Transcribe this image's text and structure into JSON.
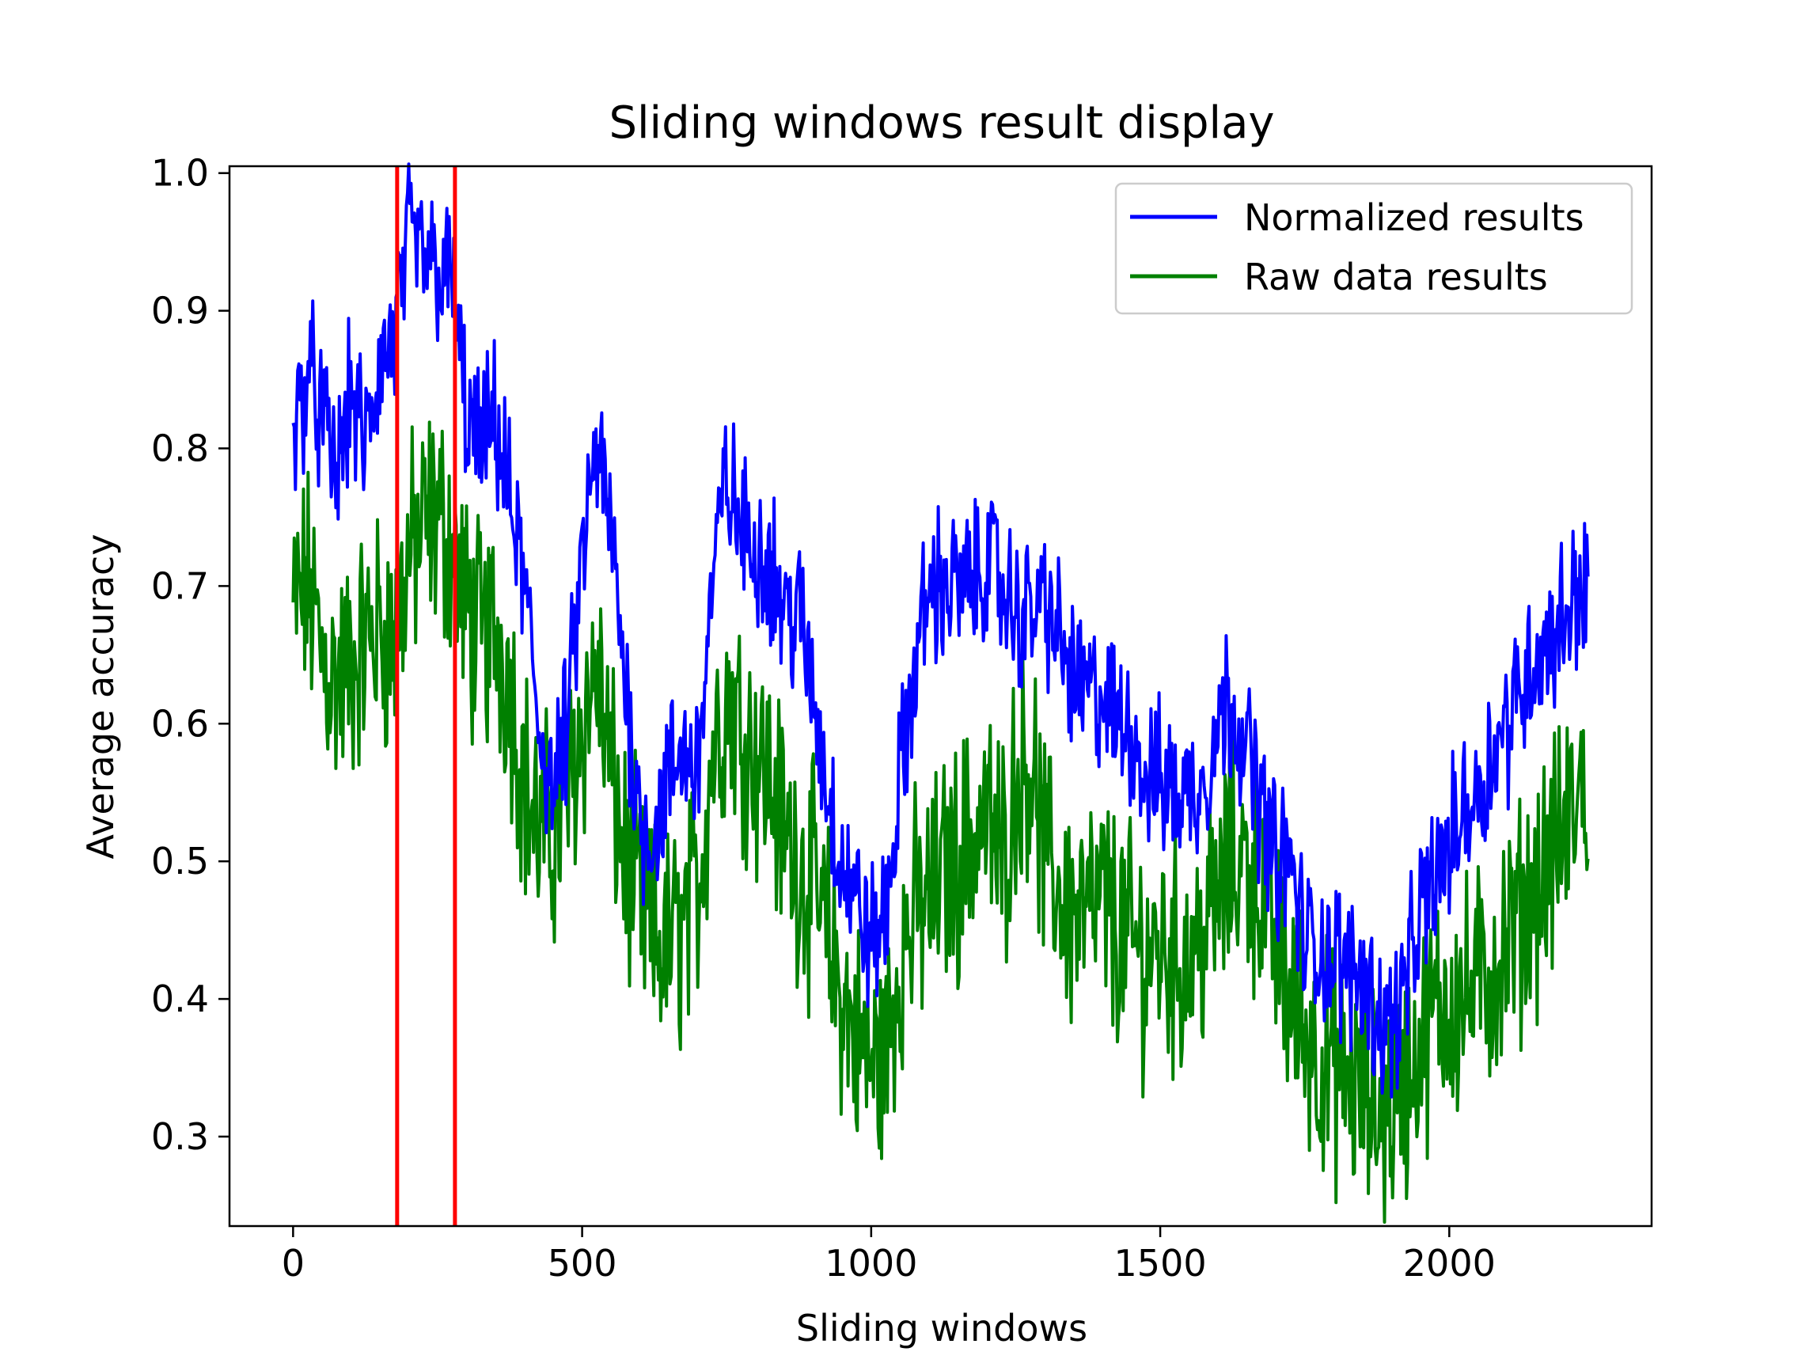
{
  "chart_data": {
    "type": "line",
    "title": "Sliding windows result display",
    "xlabel": "Sliding windows",
    "ylabel": "Average accuracy",
    "xlim": [
      -110,
      2350
    ],
    "ylim": [
      0.235,
      1.005
    ],
    "xticks": [
      0,
      500,
      1000,
      1500,
      2000
    ],
    "xtick_labels": [
      "0",
      "500",
      "1000",
      "1500",
      "2000"
    ],
    "yticks": [
      0.3,
      0.4,
      0.5,
      0.6,
      0.7,
      0.8,
      0.9,
      1.0
    ],
    "ytick_labels": [
      "0.3",
      "0.4",
      "0.5",
      "0.6",
      "0.7",
      "0.8",
      "0.9",
      "1.0"
    ],
    "grid": false,
    "legend": "top-right",
    "vertical_lines": [
      {
        "x": 180,
        "color": "#ff0000"
      },
      {
        "x": 280,
        "color": "#ff0000"
      }
    ],
    "series": [
      {
        "name": "Normalized results",
        "color": "#0000ff",
        "x": [
          0,
          25,
          50,
          75,
          100,
          125,
          150,
          175,
          200,
          225,
          250,
          275,
          300,
          325,
          350,
          375,
          400,
          425,
          450,
          475,
          500,
          525,
          550,
          575,
          600,
          625,
          650,
          675,
          700,
          725,
          750,
          775,
          800,
          825,
          850,
          875,
          900,
          925,
          950,
          975,
          1000,
          1025,
          1050,
          1075,
          1100,
          1125,
          1150,
          1175,
          1200,
          1225,
          1250,
          1275,
          1300,
          1325,
          1350,
          1375,
          1400,
          1425,
          1450,
          1475,
          1500,
          1525,
          1550,
          1575,
          1600,
          1625,
          1650,
          1675,
          1700,
          1725,
          1750,
          1775,
          1800,
          1825,
          1850,
          1875,
          1900,
          1925,
          1950,
          1975,
          2000,
          2025,
          2050,
          2075,
          2100,
          2125,
          2150,
          2175,
          2200,
          2225,
          2240
        ],
        "y": [
          0.8,
          0.86,
          0.82,
          0.78,
          0.84,
          0.8,
          0.86,
          0.88,
          0.95,
          0.94,
          0.93,
          0.92,
          0.82,
          0.8,
          0.82,
          0.76,
          0.7,
          0.6,
          0.55,
          0.6,
          0.72,
          0.8,
          0.74,
          0.63,
          0.53,
          0.52,
          0.56,
          0.58,
          0.57,
          0.7,
          0.78,
          0.74,
          0.73,
          0.72,
          0.68,
          0.68,
          0.62,
          0.55,
          0.5,
          0.47,
          0.44,
          0.46,
          0.56,
          0.64,
          0.7,
          0.7,
          0.7,
          0.7,
          0.72,
          0.7,
          0.68,
          0.68,
          0.69,
          0.66,
          0.63,
          0.62,
          0.62,
          0.6,
          0.6,
          0.56,
          0.56,
          0.55,
          0.55,
          0.56,
          0.6,
          0.62,
          0.58,
          0.54,
          0.5,
          0.5,
          0.44,
          0.44,
          0.43,
          0.42,
          0.42,
          0.39,
          0.38,
          0.41,
          0.46,
          0.49,
          0.51,
          0.54,
          0.55,
          0.58,
          0.6,
          0.63,
          0.65,
          0.66,
          0.68,
          0.7,
          0.7
        ]
      },
      {
        "name": "Raw data results",
        "color": "#008000",
        "x": [
          0,
          25,
          50,
          75,
          100,
          125,
          150,
          175,
          200,
          225,
          250,
          275,
          300,
          325,
          350,
          375,
          400,
          425,
          450,
          475,
          500,
          525,
          550,
          575,
          600,
          625,
          650,
          675,
          700,
          725,
          750,
          775,
          800,
          825,
          850,
          875,
          900,
          925,
          950,
          975,
          1000,
          1025,
          1050,
          1075,
          1100,
          1125,
          1150,
          1175,
          1200,
          1225,
          1250,
          1275,
          1300,
          1325,
          1350,
          1375,
          1400,
          1425,
          1450,
          1475,
          1500,
          1525,
          1550,
          1575,
          1600,
          1625,
          1650,
          1675,
          1700,
          1725,
          1750,
          1775,
          1800,
          1825,
          1850,
          1875,
          1900,
          1925,
          1950,
          1975,
          2000,
          2025,
          2050,
          2075,
          2100,
          2125,
          2150,
          2175,
          2200,
          2225,
          2240
        ],
        "y": [
          0.68,
          0.7,
          0.65,
          0.63,
          0.64,
          0.66,
          0.67,
          0.66,
          0.72,
          0.74,
          0.75,
          0.73,
          0.68,
          0.66,
          0.67,
          0.63,
          0.56,
          0.52,
          0.52,
          0.55,
          0.6,
          0.64,
          0.56,
          0.5,
          0.47,
          0.44,
          0.44,
          0.45,
          0.48,
          0.58,
          0.62,
          0.6,
          0.58,
          0.56,
          0.52,
          0.5,
          0.48,
          0.44,
          0.4,
          0.37,
          0.35,
          0.36,
          0.43,
          0.46,
          0.47,
          0.49,
          0.5,
          0.52,
          0.53,
          0.5,
          0.56,
          0.58,
          0.5,
          0.48,
          0.46,
          0.46,
          0.47,
          0.45,
          0.44,
          0.43,
          0.44,
          0.43,
          0.43,
          0.45,
          0.47,
          0.5,
          0.5,
          0.48,
          0.44,
          0.4,
          0.38,
          0.36,
          0.35,
          0.34,
          0.33,
          0.32,
          0.32,
          0.34,
          0.37,
          0.39,
          0.4,
          0.4,
          0.41,
          0.42,
          0.44,
          0.46,
          0.48,
          0.5,
          0.52,
          0.55,
          0.55
        ]
      }
    ]
  }
}
